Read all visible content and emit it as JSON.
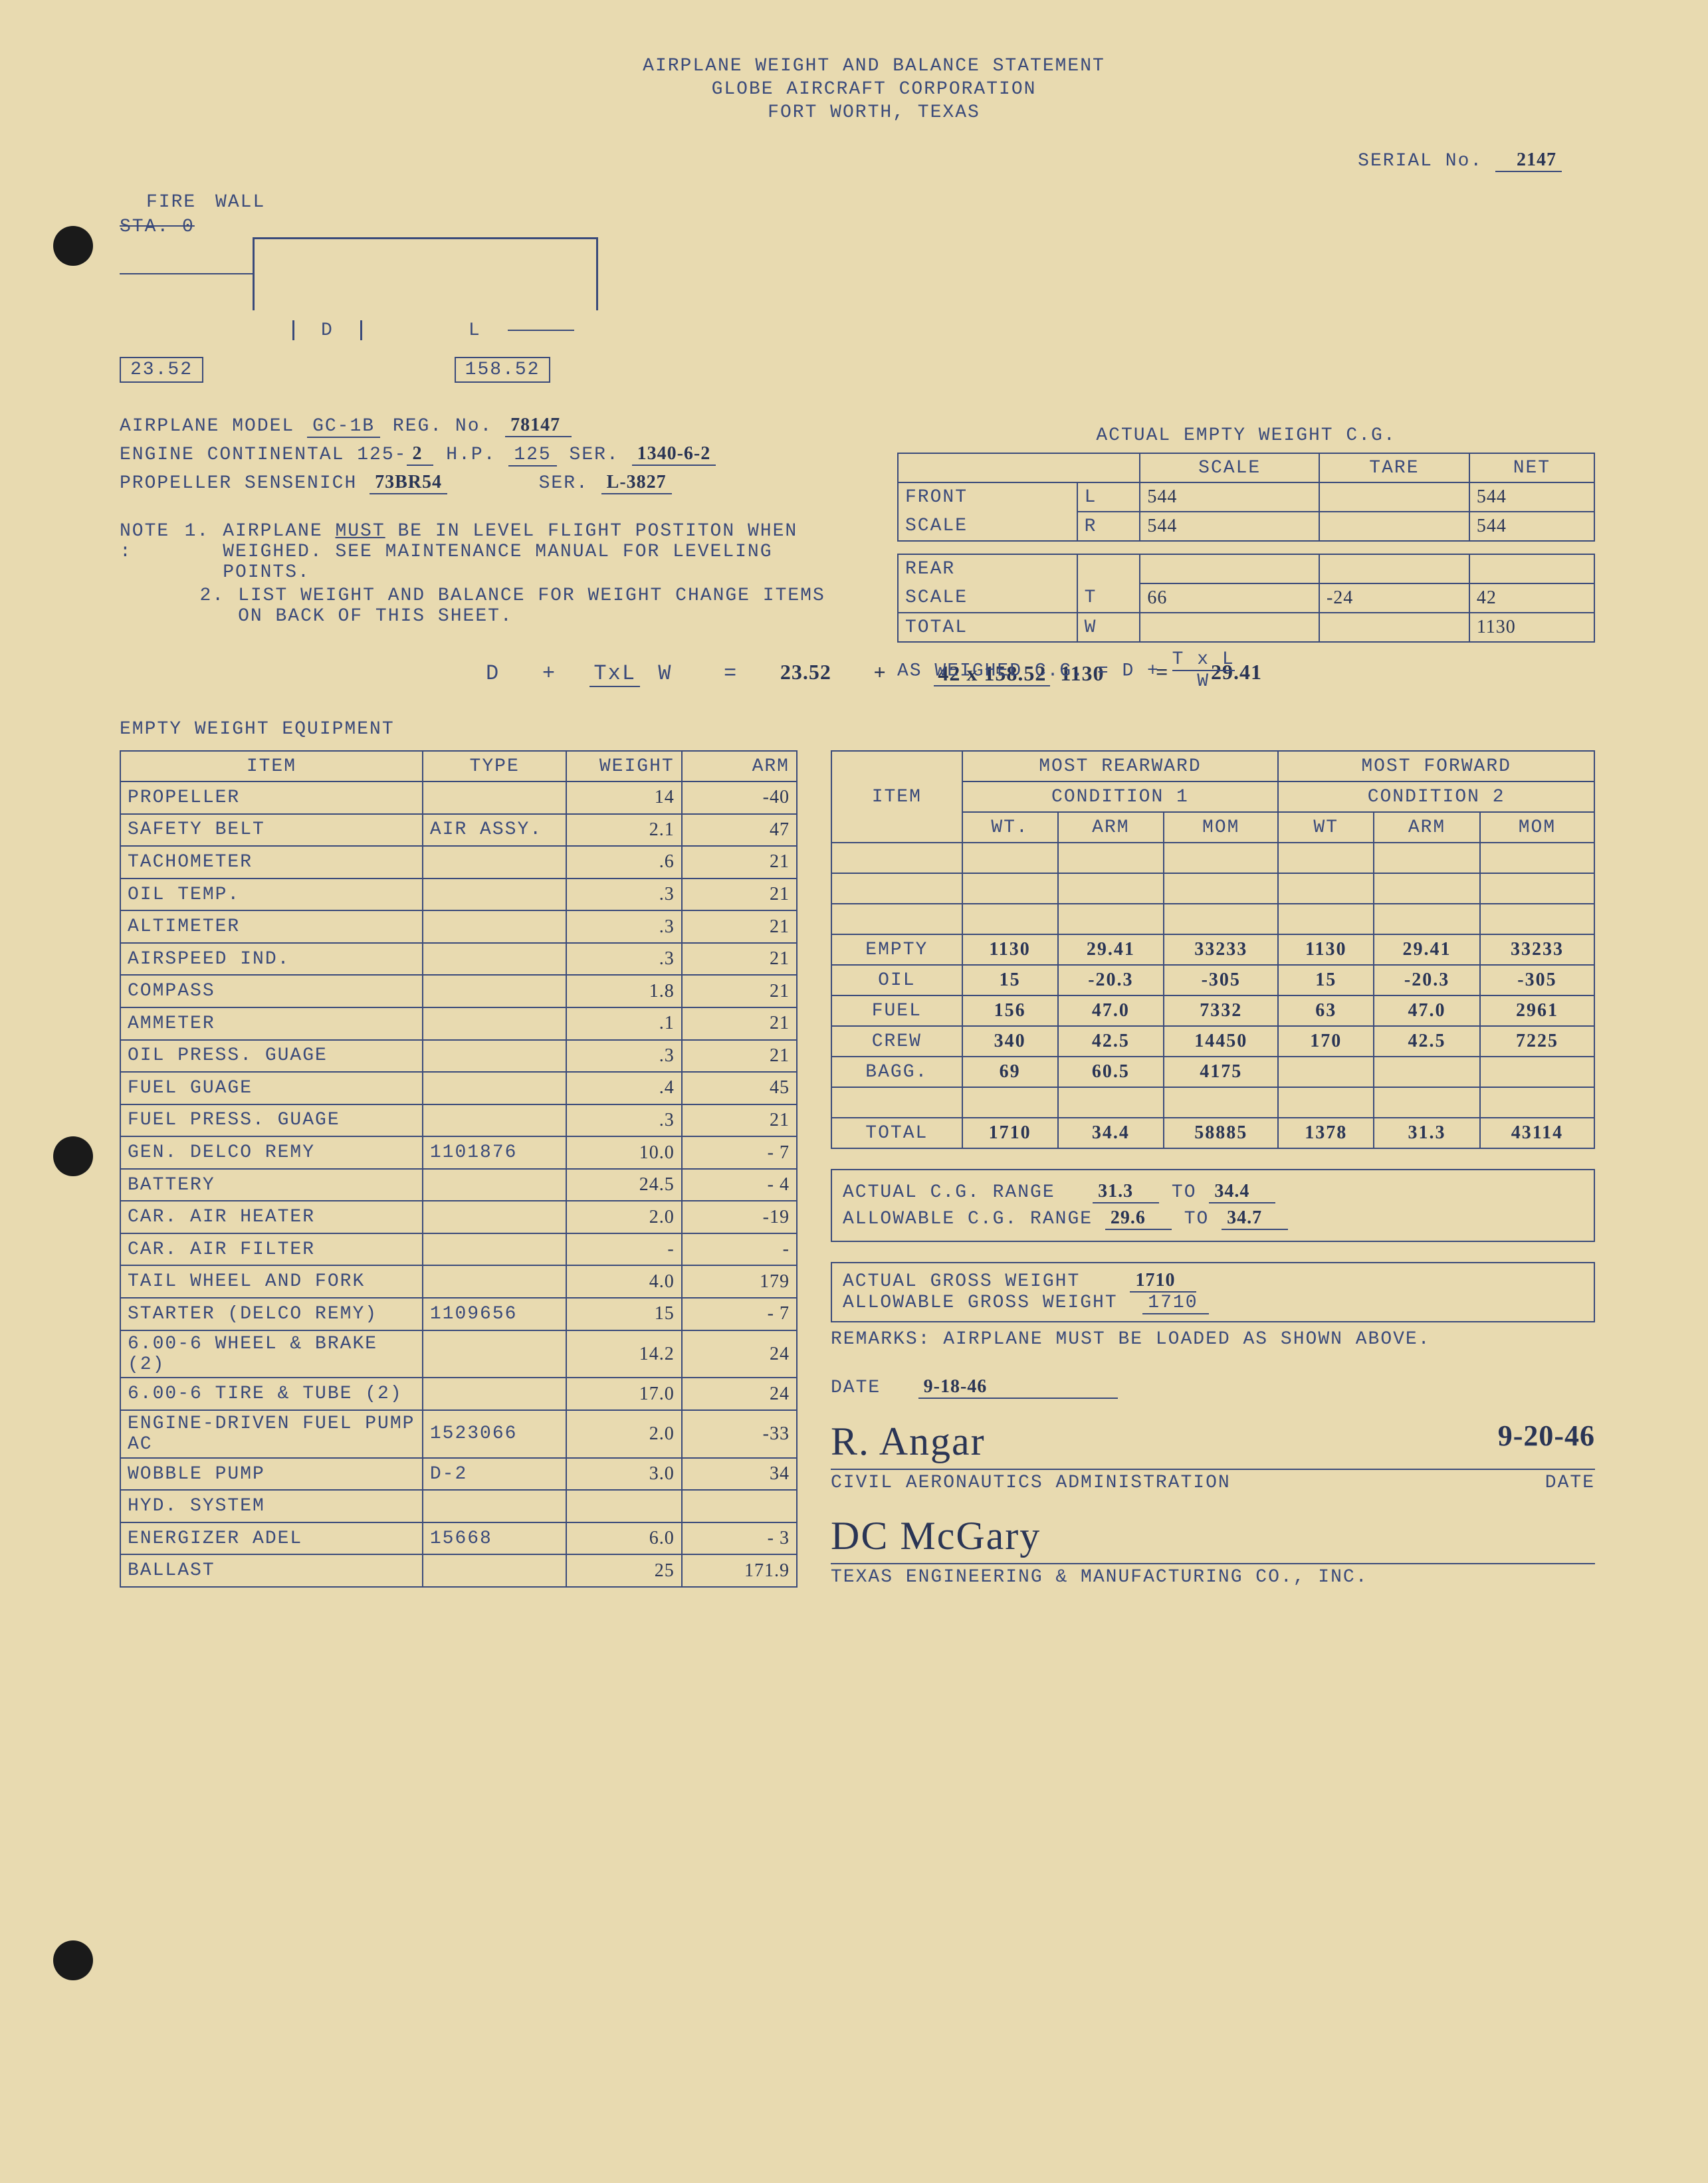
{
  "header": {
    "title": "AIRPLANE WEIGHT AND BALANCE STATEMENT",
    "company": "GLOBE AIRCRAFT CORPORATION",
    "location": "FORT WORTH, TEXAS"
  },
  "serial": {
    "label": "SERIAL No.",
    "value": "2147"
  },
  "diagram": {
    "fire": "FIRE",
    "wall": "WALL",
    "sta": "STA. 0",
    "d": "D",
    "l": "L",
    "dim_d": "23.52",
    "dim_l": "158.52"
  },
  "aircraft": {
    "model_label": "AIRPLANE MODEL",
    "model": "GC-1B",
    "reg_label": "REG. No.",
    "reg": "78147",
    "engine_label": "ENGINE CONTINENTAL 125-",
    "engine_suffix": "2",
    "hp_label": "H.P.",
    "hp": "125",
    "ser_label": "SER.",
    "engine_ser": "1340-6-2",
    "prop_label": "PROPELLER SENSENICH",
    "prop": "73BR54",
    "prop_ser": "L-3827"
  },
  "notes": {
    "label": "NOTE :",
    "n1": "AIRPLANE",
    "n1_must": "MUST",
    "n1_rest": "BE IN LEVEL FLIGHT POSTITON WHEN WEIGHED.  SEE MAINTENANCE MANUAL FOR LEVELING POINTS.",
    "n2": "LIST WEIGHT AND BALANCE FOR WEIGHT CHANGE ITEMS ON BACK OF THIS SHEET."
  },
  "cg_table": {
    "title": "ACTUAL EMPTY WEIGHT C.G.",
    "cols": {
      "scale": "SCALE",
      "tare": "TARE",
      "net": "NET"
    },
    "rows": {
      "front_l": {
        "label": "FRONT",
        "sub": "L",
        "scale": "544",
        "tare": "",
        "net": "544"
      },
      "front_r": {
        "label": "SCALE",
        "sub": "R",
        "scale": "544",
        "tare": "",
        "net": "544"
      },
      "rear": {
        "label": "REAR",
        "label2": "SCALE",
        "sub": "T",
        "scale": "66",
        "tare": "-24",
        "net": "42"
      },
      "total": {
        "label": "TOTAL",
        "sub": "W",
        "scale": "",
        "tare": "",
        "net": "1130"
      }
    },
    "asweighed": "AS WEIGHED C.G.    = D +",
    "txl": "T x L",
    "w": "W"
  },
  "formula": {
    "d": "D",
    "plus": "+",
    "txl": "TxL",
    "w": "W",
    "eq": "=",
    "v_d": "23.52",
    "v_t": "42",
    "v_l": "158.52",
    "v_w": "1130",
    "result": "29.41"
  },
  "equipment": {
    "title": "EMPTY WEIGHT EQUIPMENT",
    "cols": {
      "item": "ITEM",
      "type": "TYPE",
      "weight": "WEIGHT",
      "arm": "ARM"
    },
    "rows": [
      {
        "item": "PROPELLER",
        "type": "",
        "weight": "14",
        "arm": "-40"
      },
      {
        "item": "SAFETY BELT",
        "type": "AIR ASSY.",
        "weight": "2.1",
        "arm": "47"
      },
      {
        "item": "TACHOMETER",
        "type": "",
        "weight": ".6",
        "arm": "21"
      },
      {
        "item": "OIL TEMP.",
        "type": "",
        "weight": ".3",
        "arm": "21"
      },
      {
        "item": "ALTIMETER",
        "type": "",
        "weight": ".3",
        "arm": "21"
      },
      {
        "item": "AIRSPEED IND.",
        "type": "",
        "weight": ".3",
        "arm": "21"
      },
      {
        "item": "COMPASS",
        "type": "",
        "weight": "1.8",
        "arm": "21"
      },
      {
        "item": "AMMETER",
        "type": "",
        "weight": ".1",
        "arm": "21"
      },
      {
        "item": "OIL PRESS. GUAGE",
        "type": "",
        "weight": ".3",
        "arm": "21"
      },
      {
        "item": "FUEL GUAGE",
        "type": "",
        "weight": ".4",
        "arm": "45"
      },
      {
        "item": "FUEL PRESS. GUAGE",
        "type": "",
        "weight": ".3",
        "arm": "21"
      },
      {
        "item": "GEN. DELCO REMY",
        "type": "1101876",
        "weight": "10.0",
        "arm": "- 7"
      },
      {
        "item": "BATTERY",
        "type": "",
        "weight": "24.5",
        "arm": "- 4"
      },
      {
        "item": "CAR. AIR HEATER",
        "type": "",
        "weight": "2.0",
        "arm": "-19"
      },
      {
        "item": "CAR. AIR FILTER",
        "type": "",
        "weight": "-",
        "arm": "-"
      },
      {
        "item": "TAIL WHEEL AND FORK",
        "type": "",
        "weight": "4.0",
        "arm": "179"
      },
      {
        "item": "STARTER (DELCO REMY)",
        "type": "1109656",
        "weight": "15",
        "arm": "- 7"
      },
      {
        "item": "6.00-6 WHEEL & BRAKE (2)",
        "type": "",
        "weight": "14.2",
        "arm": "24"
      },
      {
        "item": "6.00-6 TIRE & TUBE (2)",
        "type": "",
        "weight": "17.0",
        "arm": "24"
      },
      {
        "item": "ENGINE-DRIVEN FUEL PUMP    AC",
        "type": "1523066",
        "weight": "2.0",
        "arm": "-33"
      },
      {
        "item": "WOBBLE PUMP",
        "type": "D-2",
        "weight": "3.0",
        "arm": "34"
      },
      {
        "item": "HYD. SYSTEM",
        "type": "",
        "weight": "",
        "arm": ""
      },
      {
        "item": "ENERGIZER ADEL",
        "type": "15668",
        "weight": "6.0",
        "arm": "- 3"
      },
      {
        "item": "BALLAST",
        "type": "",
        "weight": "25",
        "arm": "171.9"
      }
    ]
  },
  "conditions": {
    "rear_title": "MOST REARWARD",
    "fwd_title": "MOST FORWARD",
    "cond1": "CONDITION 1",
    "cond2": "CONDITION 2",
    "cols": {
      "item": "ITEM",
      "wt": "WT.",
      "arm": "ARM",
      "mom": "MOM",
      "wt2": "WT",
      "arm2": "ARM",
      "mom2": "MOM"
    },
    "rows": [
      {
        "item": "",
        "wt1": "",
        "arm1": "",
        "mom1": "",
        "wt2": "",
        "arm2": "",
        "mom2": ""
      },
      {
        "item": "",
        "wt1": "",
        "arm1": "",
        "mom1": "",
        "wt2": "",
        "arm2": "",
        "mom2": ""
      },
      {
        "item": "",
        "wt1": "",
        "arm1": "",
        "mom1": "",
        "wt2": "",
        "arm2": "",
        "mom2": ""
      },
      {
        "item": "EMPTY",
        "wt1": "1130",
        "arm1": "29.41",
        "mom1": "33233",
        "wt2": "1130",
        "arm2": "29.41",
        "mom2": "33233"
      },
      {
        "item": "OIL",
        "wt1": "15",
        "arm1": "-20.3",
        "mom1": "-305",
        "wt2": "15",
        "arm2": "-20.3",
        "mom2": "-305"
      },
      {
        "item": "FUEL",
        "wt1": "156",
        "arm1": "47.0",
        "mom1": "7332",
        "wt2": "63",
        "arm2": "47.0",
        "mom2": "2961"
      },
      {
        "item": "CREW",
        "wt1": "340",
        "arm1": "42.5",
        "mom1": "14450",
        "wt2": "170",
        "arm2": "42.5",
        "mom2": "7225"
      },
      {
        "item": "BAGG.",
        "wt1": "69",
        "arm1": "60.5",
        "mom1": "4175",
        "wt2": "",
        "arm2": "",
        "mom2": ""
      },
      {
        "item": "",
        "wt1": "",
        "arm1": "",
        "mom1": "",
        "wt2": "",
        "arm2": "",
        "mom2": ""
      },
      {
        "item": "TOTAL",
        "wt1": "1710",
        "arm1": "34.4",
        "mom1": "58885",
        "wt2": "1378",
        "arm2": "31.3",
        "mom2": "43114"
      }
    ]
  },
  "ranges": {
    "actual_cg_label": "ACTUAL C.G. RANGE",
    "actual_cg_from": "31.3",
    "to": "TO",
    "actual_cg_to": "34.4",
    "allow_cg_label": "ALLOWABLE C.G. RANGE",
    "allow_cg_from": "29.6",
    "allow_cg_to": "34.7"
  },
  "weights": {
    "actual_label": "ACTUAL GROSS WEIGHT",
    "actual": "1710",
    "allow_label": "ALLOWABLE GROSS WEIGHT",
    "allow": "1710"
  },
  "remarks": {
    "label": "REMARKS:",
    "text": "AIRPLANE MUST BE LOADED AS SHOWN ABOVE."
  },
  "date": {
    "label": "DATE",
    "value": "9-18-46"
  },
  "sigs": {
    "sig1": "R. Angar",
    "sig1_date": "9-20-46",
    "caa": "CIVIL AERONAUTICS ADMINISTRATION",
    "caa_date": "DATE",
    "sig2": "DC McGary",
    "texas": "TEXAS ENGINEERING & MANUFACTURING CO., INC."
  },
  "colors": {
    "paper": "#e8dab0",
    "ink": "#3a4a7a",
    "handwriting": "#2a3555",
    "hole": "#1a1a1a"
  }
}
